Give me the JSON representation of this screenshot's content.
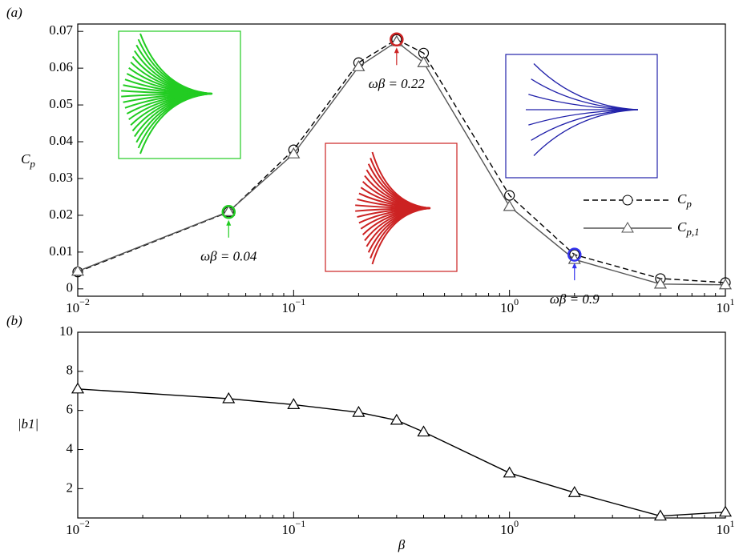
{
  "chart_data": [
    {
      "type": "line",
      "panel_label": "(a)",
      "ylabel": "Cp",
      "x": [
        0.01,
        0.05,
        0.1,
        0.2,
        0.3,
        0.4,
        1,
        2,
        5,
        10
      ],
      "series": [
        {
          "name": "Cp",
          "color": "#000000",
          "line_style": "dashed",
          "marker": "circle",
          "values": [
            0.0046,
            0.0209,
            0.0378,
            0.0615,
            0.0678,
            0.0641,
            0.0254,
            0.0093,
            0.0028,
            0.0017
          ]
        },
        {
          "name": "Cp,1",
          "color": "#555555",
          "line_style": "solid",
          "marker": "triangle",
          "values": [
            0.0048,
            0.021,
            0.0367,
            0.0604,
            0.0672,
            0.0615,
            0.0224,
            0.008,
            0.0013,
            0.0011
          ]
        }
      ],
      "annotations": [
        {
          "text": "ωβ = 0.04",
          "x": 0.05,
          "color": "#22cc22"
        },
        {
          "text": "ωβ = 0.22",
          "x": 0.3,
          "color": "#cc2222"
        },
        {
          "text": "ωβ = 0.9",
          "x": 2,
          "color": "#3333ee"
        }
      ],
      "log_x": true,
      "xlim": [
        0.01,
        10
      ],
      "xticks": [
        {
          "value": 0.01,
          "label": "10−2"
        },
        {
          "value": 0.1,
          "label": "10−1"
        },
        {
          "value": 1,
          "label": "100"
        },
        {
          "value": 10,
          "label": "101"
        }
      ],
      "ylim": [
        -0.002,
        0.072
      ],
      "yticks": [
        0,
        0.01,
        0.02,
        0.03,
        0.04,
        0.05,
        0.06,
        0.07
      ],
      "legend": "right"
    },
    {
      "type": "line",
      "panel_label": "(b)",
      "ylabel": "|b1|",
      "xlabel": "β",
      "x": [
        0.01,
        0.05,
        0.1,
        0.2,
        0.3,
        0.4,
        1,
        2,
        5,
        10
      ],
      "series": [
        {
          "color": "#000000",
          "line_style": "solid",
          "marker": "triangle",
          "values": [
            7.1,
            6.6,
            6.3,
            5.9,
            5.5,
            4.9,
            2.8,
            1.8,
            0.6,
            0.8
          ]
        }
      ],
      "log_x": true,
      "xlim": [
        0.01,
        10
      ],
      "xticks": [
        {
          "value": 0.01,
          "label": "10−2"
        },
        {
          "value": 0.1,
          "label": "10−1"
        },
        {
          "value": 1,
          "label": "100"
        },
        {
          "value": 10,
          "label": "101"
        }
      ],
      "ylim": [
        0.5,
        10
      ],
      "yticks": [
        2,
        4,
        6,
        8,
        10
      ]
    }
  ]
}
